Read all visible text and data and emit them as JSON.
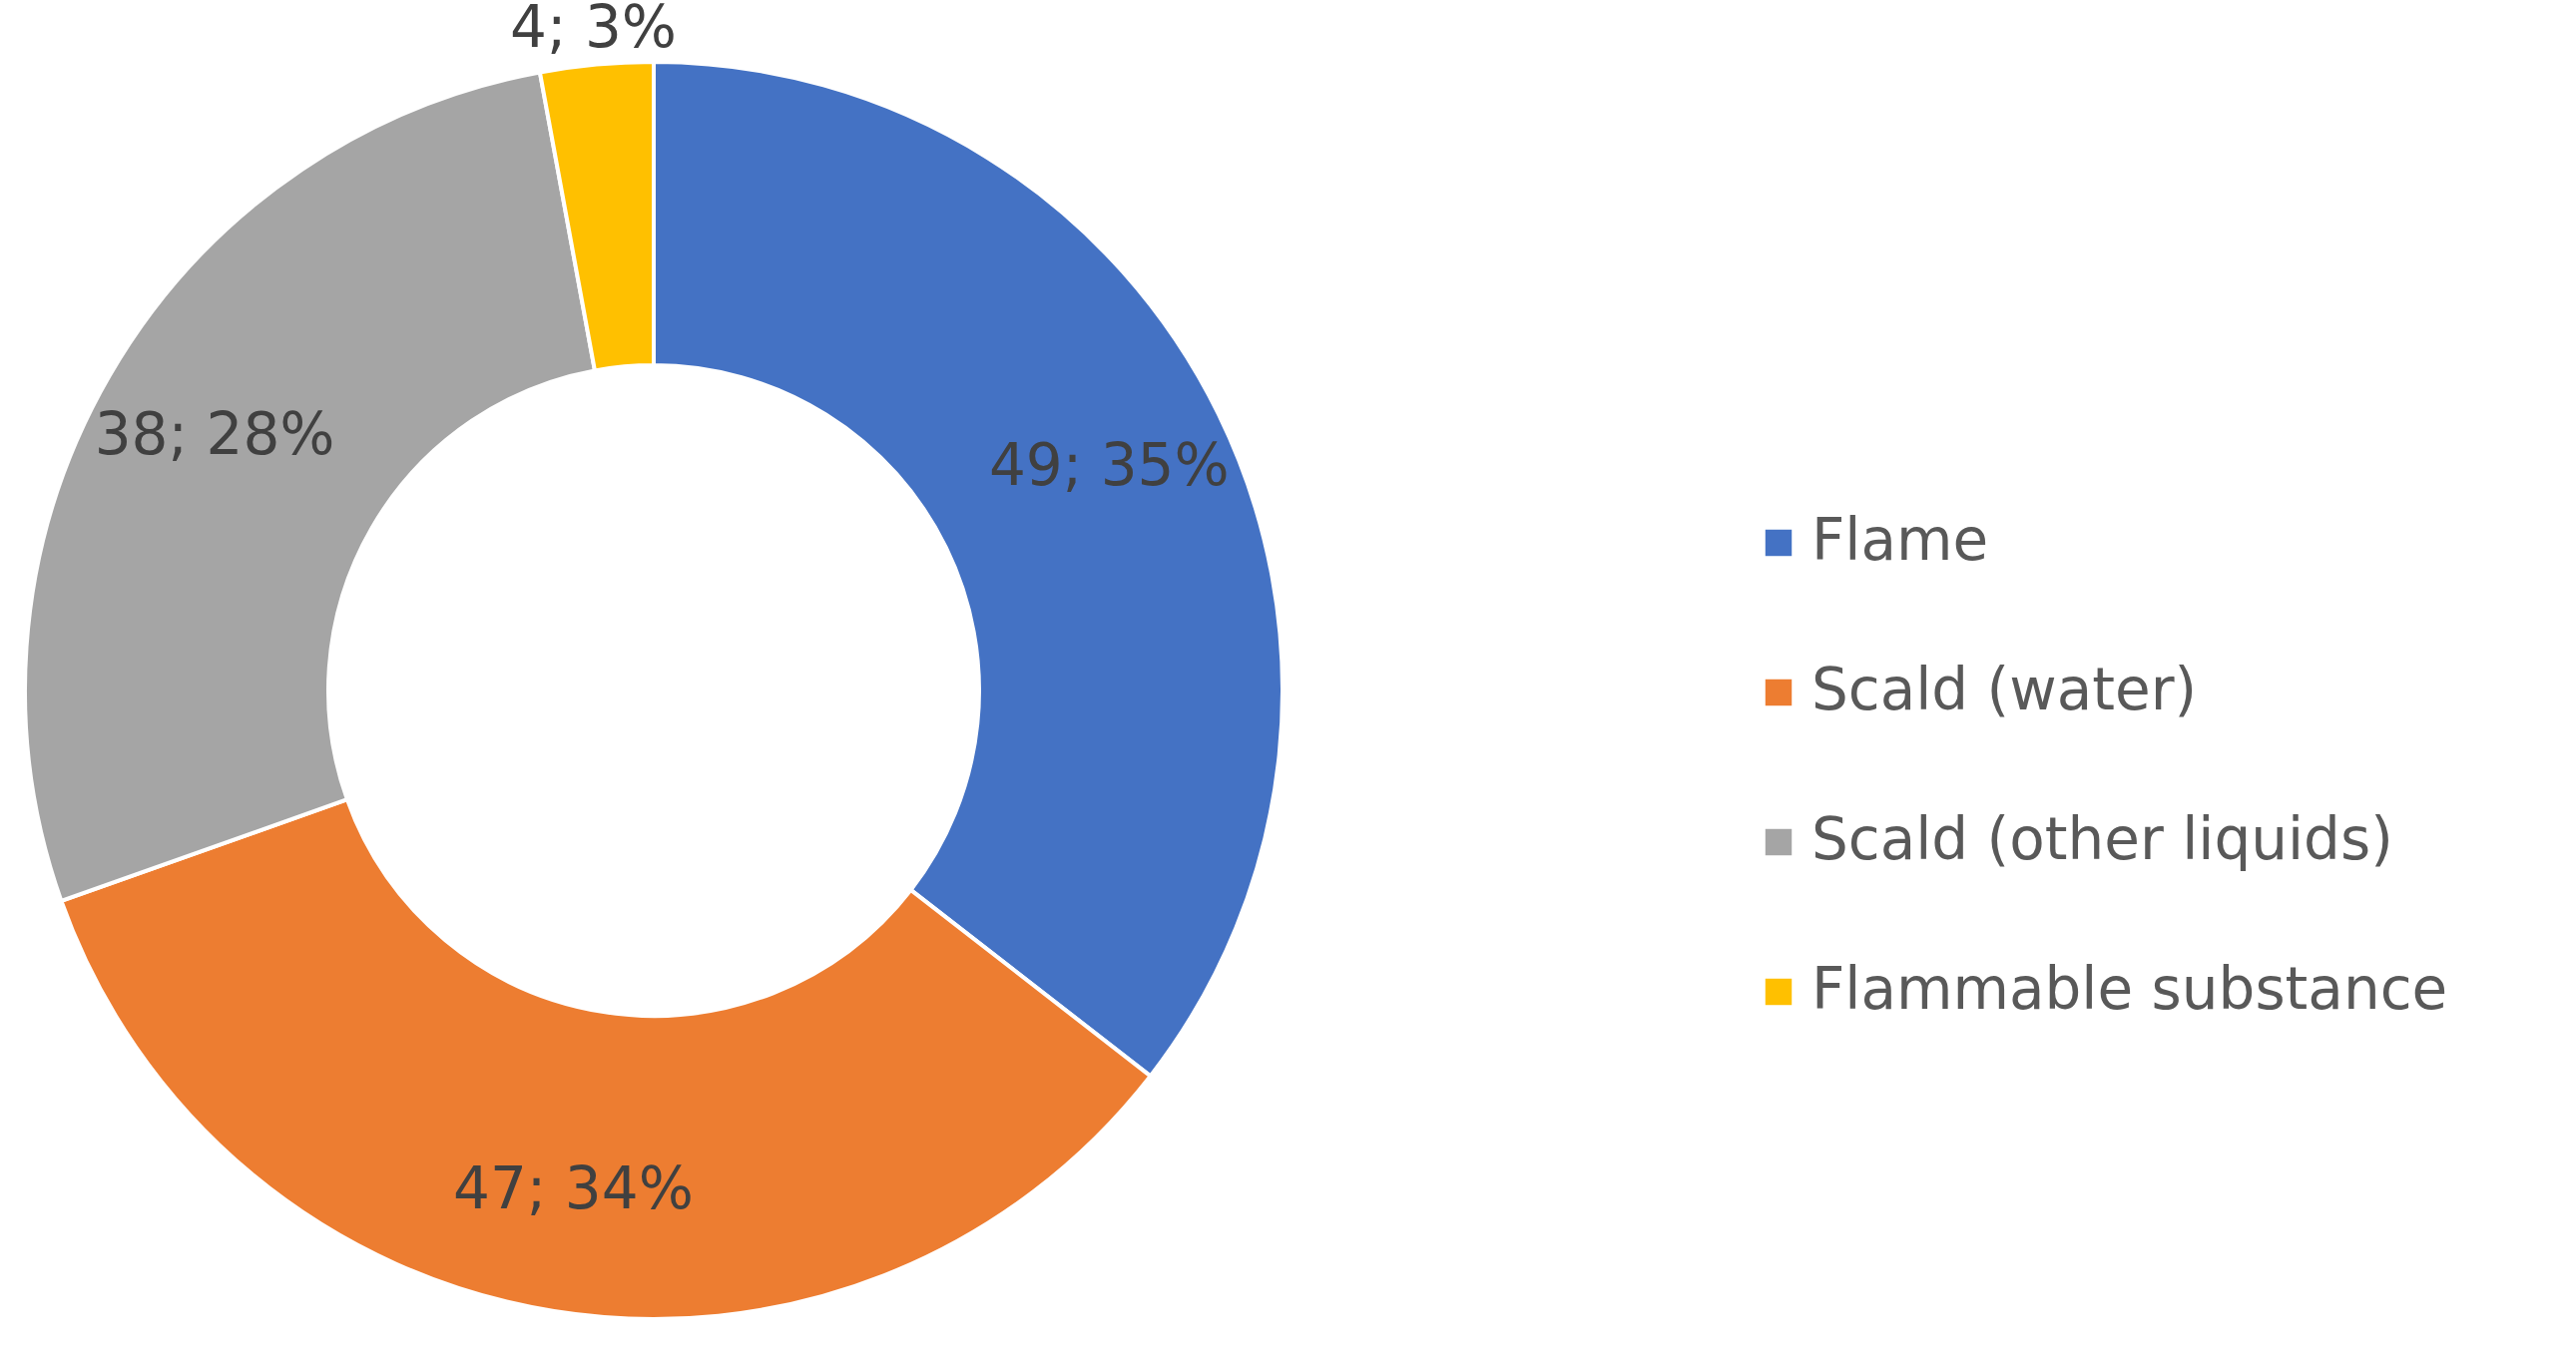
{
  "chart_data": {
    "type": "donut",
    "categories": [
      "Flame",
      "Scald (water)",
      "Scald (other liquids)",
      "Flammable substance"
    ],
    "values": [
      49,
      47,
      38,
      4
    ],
    "colors": [
      "#4472c4",
      "#ed7d31",
      "#a5a5a5",
      "#ffc000"
    ],
    "value_labels": [
      "49; 35%",
      "47; 34%",
      "38; 28%",
      "4; 3%"
    ],
    "legend": "right"
  }
}
